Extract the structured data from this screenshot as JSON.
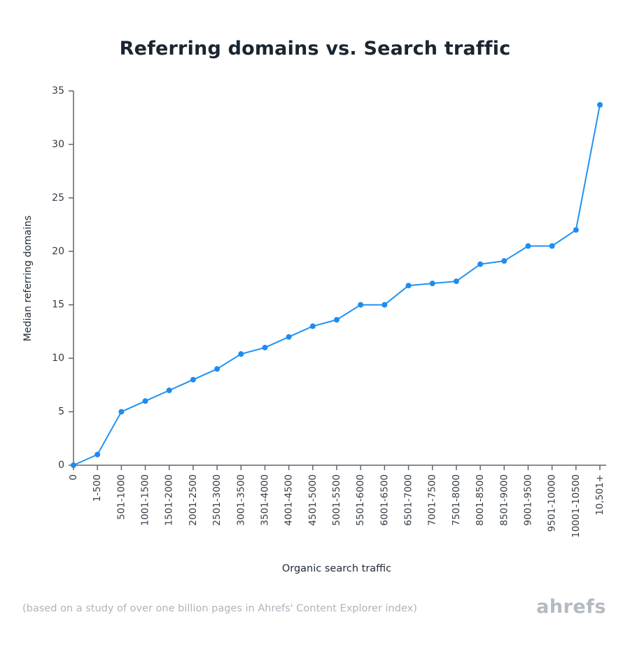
{
  "page": {
    "footer_note": "(based on a study of over one billion pages in Ahrefs' Content Explorer index)",
    "brand": "ahrefs"
  },
  "colors": {
    "line": "#2193f2",
    "point": "#1e8cef",
    "axis": "#5c6670",
    "tick_text": "#333b44"
  },
  "chart_data": {
    "type": "line",
    "title": "Referring domains vs. Search traffic",
    "xlabel": "Organic search traffic",
    "ylabel": "Median referring domains",
    "categories": [
      "0",
      "1-500",
      "501-1000",
      "1001-1500",
      "1501-2000",
      "2001-2500",
      "2501-3000",
      "3001-3500",
      "3501-4000",
      "4001-4500",
      "4501-5000",
      "5001-5500",
      "5501-6000",
      "6001-6500",
      "6501-7000",
      "7001-7500",
      "7501-8000",
      "8001-8500",
      "8501-9000",
      "9001-9500",
      "9501-10000",
      "10001-10500",
      "10,501+"
    ],
    "values": [
      0,
      1,
      5,
      6,
      7,
      8,
      9,
      10.4,
      11,
      12,
      13,
      13.6,
      15,
      15,
      16.8,
      17,
      17.2,
      18.8,
      19.1,
      20.5,
      20.5,
      22,
      33.7
    ],
    "ylim": [
      0,
      35
    ],
    "yticks": [
      0,
      5,
      10,
      15,
      20,
      25,
      30,
      35
    ],
    "grid": false,
    "legend": false
  }
}
